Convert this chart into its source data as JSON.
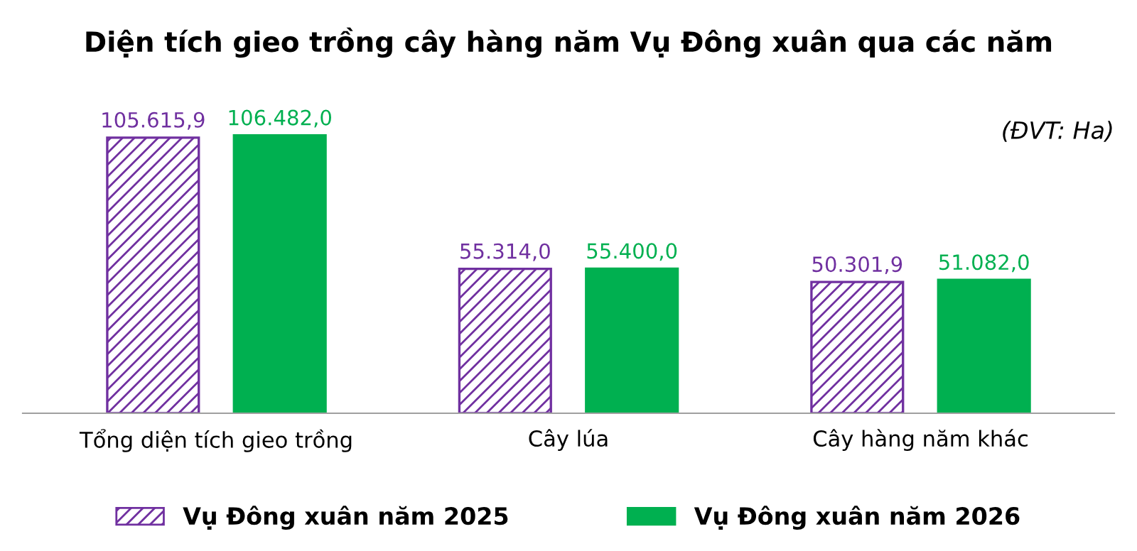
{
  "chart_data": {
    "type": "bar",
    "title": "Diện tích gieo trồng cây hàng năm Vụ Đông xuân qua các năm",
    "categories": [
      "Tổng diện tích gieo trồng",
      "Cây lúa",
      "Cây hàng năm khác"
    ],
    "series": [
      {
        "name": "Vụ Đông xuân năm 2025",
        "color": "#7030a0",
        "values": [
          105615.9,
          55314.0,
          50301.9
        ],
        "value_labels": [
          "105.615,9",
          "55.314,0",
          "50.301,9"
        ]
      },
      {
        "name": "Vụ Đông xuân năm 2026",
        "color": "#00b050",
        "values": [
          106482.0,
          55400.0,
          51082.0
        ],
        "value_labels": [
          "106.482,0",
          "55.400,0",
          "51.082,0"
        ]
      }
    ],
    "annotations": [
      "(ĐVT: Ha)"
    ],
    "legend": "bottom",
    "grid": false
  }
}
